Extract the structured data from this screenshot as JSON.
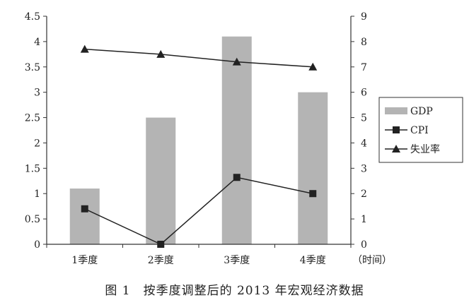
{
  "chart_data": {
    "type": "bar",
    "categories": [
      "1季度",
      "2季度",
      "3季度",
      "4季度"
    ],
    "x_unit_label": "（时间）",
    "left_axis": {
      "range": [
        0,
        4.5
      ],
      "ticks": [
        "0",
        "0.5",
        "1",
        "1.5",
        "2",
        "2.5",
        "3",
        "3.5",
        "4",
        "4.5"
      ]
    },
    "right_axis": {
      "range": [
        0,
        9
      ],
      "ticks": [
        "0",
        "1",
        "2",
        "3",
        "4",
        "5",
        "6",
        "7",
        "8",
        "9"
      ]
    },
    "series": [
      {
        "name": "GDP",
        "type": "bar",
        "axis": "left",
        "values": [
          1.1,
          2.5,
          4.1,
          3.0
        ],
        "color": "#b4b4b4"
      },
      {
        "name": "CPI",
        "type": "line",
        "marker": "square",
        "axis": "left",
        "values": [
          0.7,
          0.0,
          1.32,
          1.0
        ],
        "color": "#222222"
      },
      {
        "name": "失业率",
        "type": "line",
        "marker": "triangle",
        "axis": "right",
        "values": [
          7.7,
          7.5,
          7.2,
          7.0
        ],
        "color": "#222222"
      }
    ],
    "legend_position": "right",
    "grid": false
  },
  "caption": "图 1　按季度调整后的 2013 年宏观经济数据"
}
